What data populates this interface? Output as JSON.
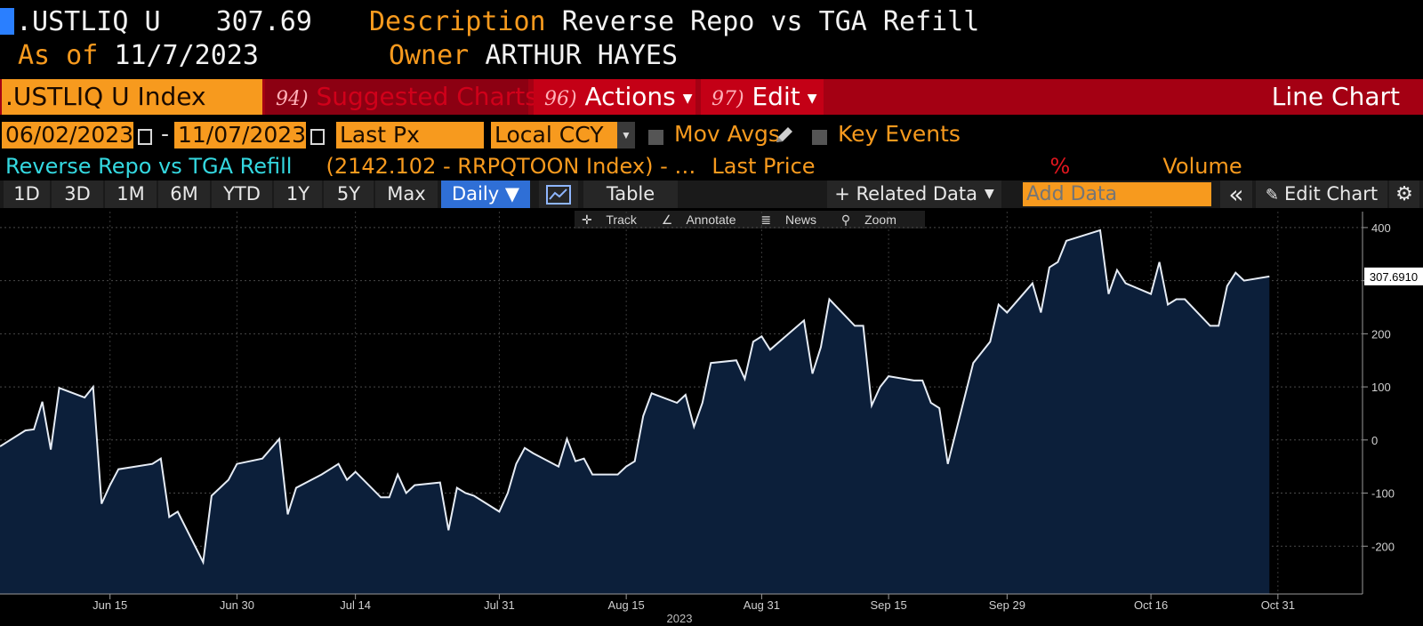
{
  "header": {
    "ticker": ".USTLIQ U",
    "price": "307.69",
    "desc_label": "Description",
    "desc_value": "Reverse Repo vs TGA Refill",
    "asof_label": "As of",
    "asof_value": "11/7/2023",
    "owner_label": "Owner",
    "owner_value": "ARTHUR HAYES"
  },
  "menubar": {
    "index": ".USTLIQ U Index",
    "suggest_num": "94)",
    "suggest": "Suggested Charts",
    "actions_num": "96)",
    "actions": "Actions",
    "edit_num": "97)",
    "edit": "Edit",
    "chart_type": "Line Chart"
  },
  "controls": {
    "start_date": "06/02/2023",
    "dash": "-",
    "end_date": "11/07/2023",
    "field": "Last Px",
    "currency": "Local CCY",
    "mov_avgs": "Mov Avgs",
    "key_events": "Key Events"
  },
  "legend": {
    "series": "Reverse Repo vs TGA Refill",
    "detail": "(2142.102 - RRPQTOON Index) - …",
    "last_price": "Last Price",
    "pct": "%",
    "volume": "Volume"
  },
  "toolbar": {
    "periods": [
      "1D",
      "3D",
      "1M",
      "6M",
      "YTD",
      "1Y",
      "5Y",
      "Max"
    ],
    "frequency": "Daily ▼",
    "table": "Table",
    "related": "+ Related Data",
    "add_data_placeholder": "Add Data",
    "collapse": "«",
    "edit_chart": "Edit Chart"
  },
  "chart_tools": {
    "track": "Track",
    "annotate": "Annotate",
    "news": "News",
    "zoom": "Zoom"
  },
  "colors": {
    "orange": "#f79a1e",
    "menu_red": "#a40013",
    "area_fill": "#0c1f3a",
    "line": "#e6ecf5",
    "cyan": "#34d8e0"
  },
  "chart_data": {
    "type": "area",
    "title": "",
    "xlabel": "2023",
    "ylabel": "",
    "ylim": [
      -290,
      430
    ],
    "yticks": [
      400,
      300,
      200,
      100,
      0,
      -100,
      -200
    ],
    "xticks": [
      {
        "label": "Jun 15",
        "date": "2023-06-15"
      },
      {
        "label": "Jun 30",
        "date": "2023-06-30"
      },
      {
        "label": "Jul 14",
        "date": "2023-07-14"
      },
      {
        "label": "Jul 31",
        "date": "2023-07-31"
      },
      {
        "label": "Aug 15",
        "date": "2023-08-15"
      },
      {
        "label": "Aug 31",
        "date": "2023-08-31"
      },
      {
        "label": "Sep 15",
        "date": "2023-09-15"
      },
      {
        "label": "Sep 29",
        "date": "2023-09-29"
      },
      {
        "label": "Oct 16",
        "date": "2023-10-16"
      },
      {
        "label": "Oct 31",
        "date": "2023-10-31"
      }
    ],
    "last_value_label": "307.6910",
    "grid": true,
    "series": [
      {
        "name": "Reverse Repo vs TGA Refill",
        "points": [
          [
            "2023-06-02",
            -12
          ],
          [
            "2023-06-05",
            18
          ],
          [
            "2023-06-06",
            20
          ],
          [
            "2023-06-07",
            72
          ],
          [
            "2023-06-08",
            -18
          ],
          [
            "2023-06-09",
            98
          ],
          [
            "2023-06-12",
            80
          ],
          [
            "2023-06-13",
            100
          ],
          [
            "2023-06-14",
            -120
          ],
          [
            "2023-06-15",
            -85
          ],
          [
            "2023-06-16",
            -55
          ],
          [
            "2023-06-20",
            -45
          ],
          [
            "2023-06-21",
            -35
          ],
          [
            "2023-06-22",
            -145
          ],
          [
            "2023-06-23",
            -135
          ],
          [
            "2023-06-26",
            -230
          ],
          [
            "2023-06-27",
            -105
          ],
          [
            "2023-06-28",
            -90
          ],
          [
            "2023-06-29",
            -75
          ],
          [
            "2023-06-30",
            -45
          ],
          [
            "2023-07-03",
            -35
          ],
          [
            "2023-07-05",
            2
          ],
          [
            "2023-07-06",
            -140
          ],
          [
            "2023-07-07",
            -90
          ],
          [
            "2023-07-10",
            -65
          ],
          [
            "2023-07-11",
            -55
          ],
          [
            "2023-07-12",
            -45
          ],
          [
            "2023-07-13",
            -75
          ],
          [
            "2023-07-14",
            -60
          ],
          [
            "2023-07-17",
            -108
          ],
          [
            "2023-07-18",
            -108
          ],
          [
            "2023-07-19",
            -65
          ],
          [
            "2023-07-20",
            -100
          ],
          [
            "2023-07-21",
            -85
          ],
          [
            "2023-07-24",
            -80
          ],
          [
            "2023-07-25",
            -170
          ],
          [
            "2023-07-26",
            -90
          ],
          [
            "2023-07-27",
            -100
          ],
          [
            "2023-07-28",
            -105
          ],
          [
            "2023-07-31",
            -135
          ],
          [
            "2023-08-01",
            -100
          ],
          [
            "2023-08-02",
            -45
          ],
          [
            "2023-08-03",
            -15
          ],
          [
            "2023-08-04",
            -25
          ],
          [
            "2023-08-07",
            -50
          ],
          [
            "2023-08-08",
            2
          ],
          [
            "2023-08-09",
            -40
          ],
          [
            "2023-08-10",
            -35
          ],
          [
            "2023-08-11",
            -65
          ],
          [
            "2023-08-14",
            -65
          ],
          [
            "2023-08-15",
            -50
          ],
          [
            "2023-08-16",
            -40
          ],
          [
            "2023-08-17",
            45
          ],
          [
            "2023-08-18",
            88
          ],
          [
            "2023-08-21",
            70
          ],
          [
            "2023-08-22",
            85
          ],
          [
            "2023-08-23",
            25
          ],
          [
            "2023-08-24",
            70
          ],
          [
            "2023-08-25",
            145
          ],
          [
            "2023-08-28",
            150
          ],
          [
            "2023-08-29",
            115
          ],
          [
            "2023-08-30",
            185
          ],
          [
            "2023-08-31",
            195
          ],
          [
            "2023-09-01",
            170
          ],
          [
            "2023-09-05",
            225
          ],
          [
            "2023-09-06",
            125
          ],
          [
            "2023-09-07",
            175
          ],
          [
            "2023-09-08",
            265
          ],
          [
            "2023-09-11",
            215
          ],
          [
            "2023-09-12",
            215
          ],
          [
            "2023-09-13",
            65
          ],
          [
            "2023-09-14",
            100
          ],
          [
            "2023-09-15",
            120
          ],
          [
            "2023-09-18",
            112
          ],
          [
            "2023-09-19",
            112
          ],
          [
            "2023-09-20",
            70
          ],
          [
            "2023-09-21",
            60
          ],
          [
            "2023-09-22",
            -45
          ],
          [
            "2023-09-25",
            145
          ],
          [
            "2023-09-26",
            165
          ],
          [
            "2023-09-27",
            185
          ],
          [
            "2023-09-28",
            255
          ],
          [
            "2023-09-29",
            240
          ],
          [
            "2023-10-02",
            295
          ],
          [
            "2023-10-03",
            240
          ],
          [
            "2023-10-04",
            325
          ],
          [
            "2023-10-05",
            335
          ],
          [
            "2023-10-06",
            375
          ],
          [
            "2023-10-10",
            395
          ],
          [
            "2023-10-11",
            275
          ],
          [
            "2023-10-12",
            320
          ],
          [
            "2023-10-13",
            295
          ],
          [
            "2023-10-16",
            275
          ],
          [
            "2023-10-17",
            335
          ],
          [
            "2023-10-18",
            255
          ],
          [
            "2023-10-19",
            265
          ],
          [
            "2023-10-20",
            265
          ],
          [
            "2023-10-23",
            215
          ],
          [
            "2023-10-24",
            215
          ],
          [
            "2023-10-25",
            290
          ],
          [
            "2023-10-26",
            315
          ],
          [
            "2023-10-27",
            300
          ],
          [
            "2023-10-30",
            308
          ]
        ]
      }
    ]
  }
}
